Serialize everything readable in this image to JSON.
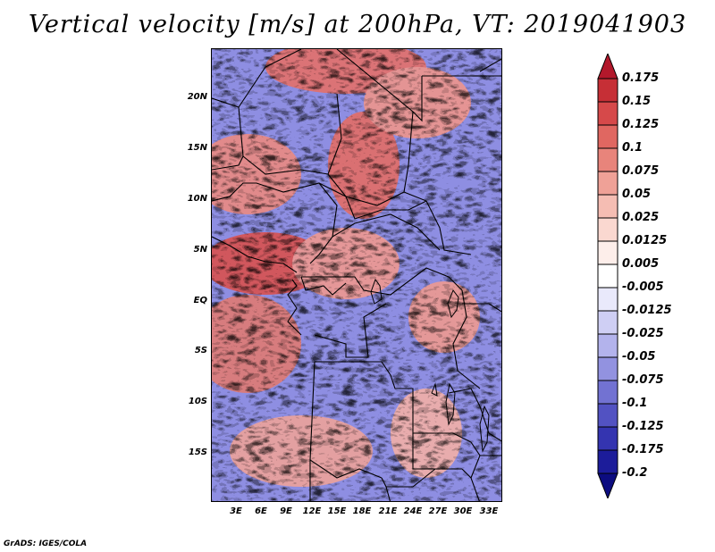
{
  "title": "Vertical velocity [m/s] at 200hPa, VT: 2019041903",
  "footer": "GrADS: IGES/COLA",
  "map": {
    "lat_labels": [
      "20N",
      "15N",
      "10N",
      "5N",
      "EQ",
      "5S",
      "10S",
      "15S"
    ],
    "lon_labels": [
      "3E",
      "6E",
      "9E",
      "12E",
      "15E",
      "18E",
      "21E",
      "24E",
      "27E",
      "30E",
      "33E"
    ]
  },
  "colorbar": {
    "labels": [
      "0.175",
      "0.15",
      "0.125",
      "0.1",
      "0.075",
      "0.05",
      "0.025",
      "0.0125",
      "0.005",
      "-0.005",
      "-0.0125",
      "-0.025",
      "-0.05",
      "-0.075",
      "-0.1",
      "-0.125",
      "-0.175",
      "-0.2"
    ],
    "colors": [
      "#b2182b",
      "#c62f36",
      "#d6494a",
      "#e06761",
      "#e8847b",
      "#efa197",
      "#f5bdb3",
      "#fad8d0",
      "#fdeeea",
      "#ffffff",
      "#e9e9fb",
      "#cfcff4",
      "#b3b3ec",
      "#9292e0",
      "#7272d2",
      "#5252c2",
      "#3434b0",
      "#1c1c9a",
      "#0c0c80"
    ]
  }
}
